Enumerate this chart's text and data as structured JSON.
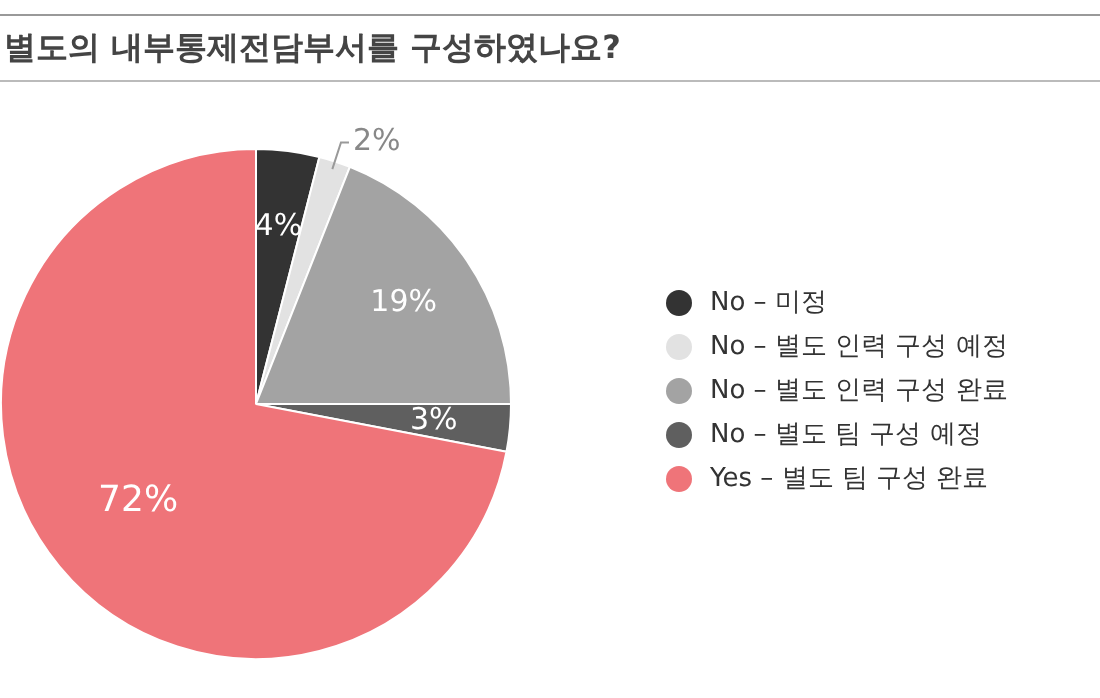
{
  "chart_data": {
    "type": "pie",
    "title": "별도의 내부통제전담부서를 구성하였나요?",
    "categories": [
      "No – 미정",
      "No – 별도 인력 구성 예정",
      "No – 별도 인력 구성 완료",
      "No – 별도 팀 구성 예정",
      "Yes – 별도 팀 구성 완료"
    ],
    "values": [
      4,
      2,
      19,
      3,
      72
    ],
    "colors": [
      "#333333",
      "#e2e2e2",
      "#a3a3a3",
      "#5f5f5f",
      "#ef7479"
    ],
    "value_labels": [
      "4%",
      "2%",
      "19%",
      "3%",
      "72%"
    ],
    "legend": "right"
  }
}
